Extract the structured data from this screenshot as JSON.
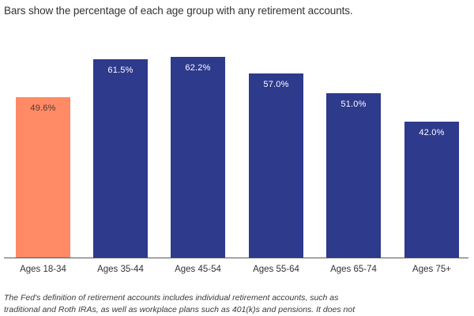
{
  "subtitle": "Bars show the percentage of each age group with any retirement accounts.",
  "footnote_line1": "The Fed's definition of retirement accounts includes individual retirement accounts, such as",
  "footnote_line2": "traditional and Roth IRAs, as well as workplace plans such as 401(k)s and pensions. It does not",
  "colors": {
    "highlight": "#FF8A65",
    "primary": "#2E3A8C",
    "highlight_label": "#4a3a35",
    "primary_label": "#ffffff"
  },
  "chart_data": {
    "type": "bar",
    "title": "Bars show the percentage of each age group with any retirement accounts.",
    "xlabel": "",
    "ylabel": "",
    "ylim": [
      0,
      70
    ],
    "grid": false,
    "legend": null,
    "categories": [
      "Ages 18-34",
      "Ages 35-44",
      "Ages 45-54",
      "Ages 55-64",
      "Ages 65-74",
      "Ages 75+"
    ],
    "values": [
      49.6,
      61.5,
      62.2,
      57.0,
      51.0,
      42.0
    ],
    "value_labels": [
      "49.6%",
      "61.5%",
      "62.2%",
      "57.0%",
      "51.0%",
      "42.0%"
    ],
    "highlighted_category": "Ages 18-34",
    "annotations": [
      "The Fed's definition of retirement accounts includes individual retirement accounts, such as traditional and Roth IRAs, as well as workplace plans such as 401(k)s and pensions. It does not"
    ]
  }
}
